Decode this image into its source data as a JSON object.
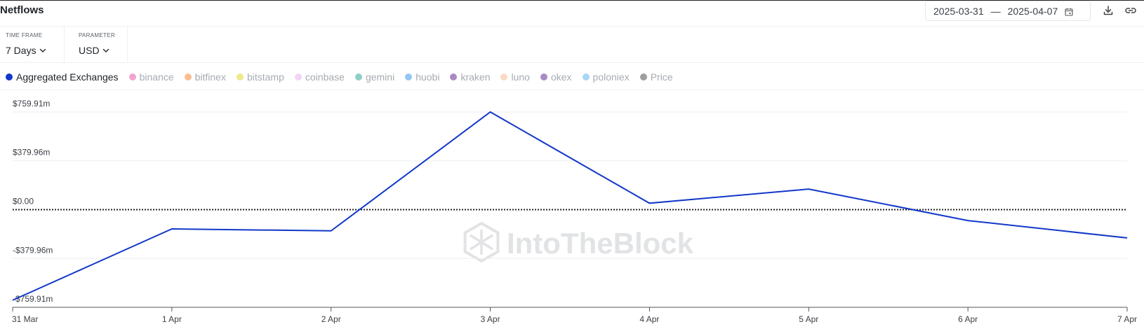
{
  "header": {
    "title": "Netflows",
    "date_start": "2025-03-31",
    "date_sep": "—",
    "date_end": "2025-04-07"
  },
  "controls": {
    "timeframe_label": "TIME FRAME",
    "timeframe_value": "7 Days",
    "parameter_label": "PARAMETER",
    "parameter_value": "USD"
  },
  "legend": [
    {
      "name": "Aggregated Exchanges",
      "color": "#1237c9",
      "active": true
    },
    {
      "name": "binance",
      "color": "#f3a4cf",
      "active": false
    },
    {
      "name": "bitfinex",
      "color": "#f9bd92",
      "active": false
    },
    {
      "name": "bitstamp",
      "color": "#f0e98a",
      "active": false
    },
    {
      "name": "coinbase",
      "color": "#f2d4f5",
      "active": false
    },
    {
      "name": "gemini",
      "color": "#8ecfc9",
      "active": false
    },
    {
      "name": "huobi",
      "color": "#96c7f3",
      "active": false
    },
    {
      "name": "kraken",
      "color": "#a98bc4",
      "active": false
    },
    {
      "name": "luno",
      "color": "#fbd9c4",
      "active": false
    },
    {
      "name": "okex",
      "color": "#a98bc4",
      "active": false
    },
    {
      "name": "poloniex",
      "color": "#a8d6f5",
      "active": false
    },
    {
      "name": "Price",
      "color": "#9e9e9e",
      "active": false
    }
  ],
  "watermark": "IntoTheBlock",
  "chart_data": {
    "type": "line",
    "title": "Netflows",
    "categories": [
      "31 Mar",
      "1 Apr",
      "2 Apr",
      "3 Apr",
      "4 Apr",
      "5 Apr",
      "6 Apr",
      "7 Apr"
    ],
    "series": [
      {
        "name": "Aggregated Exchanges",
        "color": "#1237c9",
        "values": [
          -705,
          -150,
          -165,
          760,
          50,
          160,
          -85,
          -220
        ]
      }
    ],
    "yticks": [
      759.91,
      379.96,
      0,
      -379.96,
      -759.91
    ],
    "ytick_labels": [
      "$759.91m",
      "$379.96m",
      "$0.00",
      "-$379.96m",
      "-$759.91m"
    ],
    "ylim": [
      -759.91,
      759.91
    ],
    "zero_line": "dotted",
    "grid": true
  }
}
